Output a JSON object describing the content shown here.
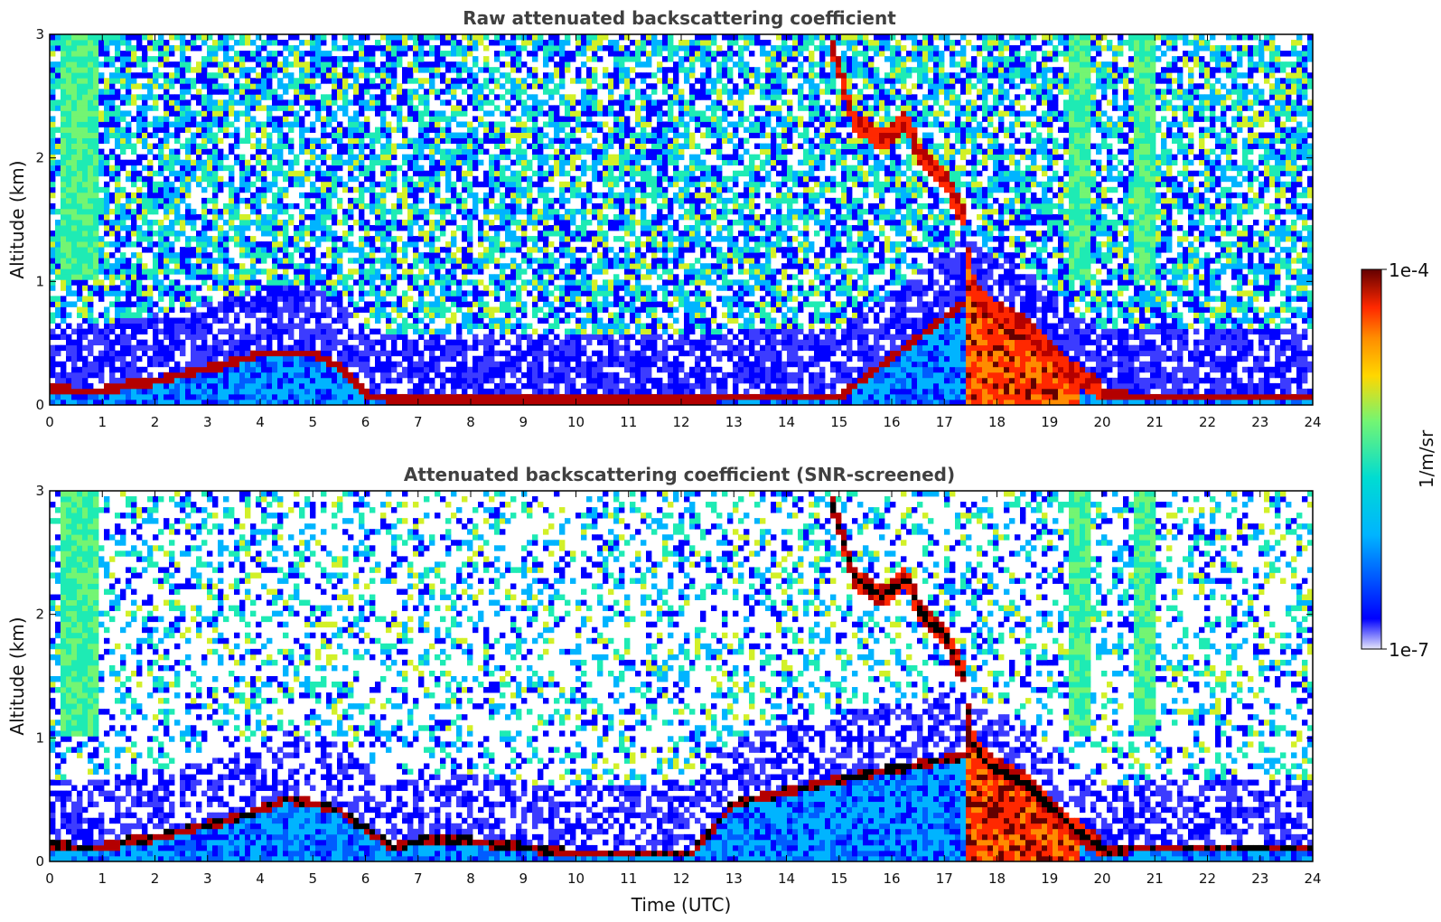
{
  "colors": {
    "scale": [
      "#ffffff",
      "#e6e6fa",
      "#b3b3f0",
      "#3c3cff",
      "#0000ff",
      "#005cff",
      "#00b4ff",
      "#00dcd2",
      "#1eebb4",
      "#73f573",
      "#d2f028",
      "#ffd700",
      "#ff8c00",
      "#ff2800",
      "#b40000",
      "#640000"
    ],
    "black": "#000000"
  },
  "chart_data": [
    {
      "type": "heatmap",
      "title": "Raw attenuated backscattering coefficient",
      "xlabel": "",
      "ylabel": "Altitude (km)",
      "xlim": [
        0,
        24
      ],
      "ylim": [
        0,
        3
      ],
      "x_ticks": [
        "0",
        "1",
        "2",
        "3",
        "4",
        "5",
        "6",
        "7",
        "8",
        "9",
        "10",
        "11",
        "12",
        "13",
        "14",
        "15",
        "16",
        "17",
        "18",
        "19",
        "20",
        "21",
        "22",
        "23",
        "24"
      ],
      "y_ticks": [
        "0",
        "1",
        "2",
        "3"
      ],
      "boundary_layer_top_km": [
        [
          0,
          0.17
        ],
        [
          0.5,
          0.15
        ],
        [
          1.0,
          0.15
        ],
        [
          1.5,
          0.2
        ],
        [
          2.0,
          0.23
        ],
        [
          2.5,
          0.28
        ],
        [
          3.0,
          0.33
        ],
        [
          3.5,
          0.38
        ],
        [
          4.0,
          0.45
        ],
        [
          4.5,
          0.45
        ],
        [
          5.0,
          0.45
        ],
        [
          5.5,
          0.35
        ],
        [
          6.0,
          0.12
        ],
        [
          6.5,
          0.08
        ],
        [
          7,
          0.08
        ],
        [
          8,
          0.08
        ],
        [
          9,
          0.08
        ],
        [
          10,
          0.08
        ],
        [
          11,
          0.08
        ],
        [
          12.2,
          0.08
        ],
        [
          13,
          0.1
        ],
        [
          14,
          0.1
        ],
        [
          15,
          0.1
        ],
        [
          17.5,
          0.9
        ],
        [
          18,
          0.7
        ],
        [
          18.5,
          0.62
        ],
        [
          19,
          0.45
        ],
        [
          19.5,
          0.25
        ],
        [
          20,
          0.12
        ],
        [
          21,
          0.1
        ],
        [
          22,
          0.1
        ],
        [
          23,
          0.1
        ],
        [
          24,
          0.1
        ]
      ],
      "cloud_layer_km": [
        [
          14.8,
          3.0
        ],
        [
          15.0,
          2.7
        ],
        [
          15.3,
          2.3
        ],
        [
          15.6,
          2.2
        ],
        [
          15.8,
          2.15
        ],
        [
          16.0,
          2.2
        ],
        [
          16.3,
          2.3
        ],
        [
          16.5,
          2.05
        ],
        [
          16.8,
          1.9
        ],
        [
          17.0,
          1.85
        ],
        [
          17.2,
          1.65
        ],
        [
          17.4,
          1.5
        ],
        [
          17.5,
          1.0
        ],
        [
          17.8,
          0.8
        ],
        [
          18.2,
          0.7
        ],
        [
          18.5,
          0.65
        ],
        [
          19.0,
          0.45
        ],
        [
          19.5,
          0.25
        ],
        [
          20.0,
          0.12
        ]
      ],
      "noise_level": 0.72,
      "screened": false
    },
    {
      "type": "heatmap",
      "title": "Attenuated backscattering coefficient (SNR-screened)",
      "xlabel": "Time (UTC)",
      "ylabel": "Altitude (km)",
      "xlim": [
        0,
        24
      ],
      "ylim": [
        0,
        3
      ],
      "x_ticks": [
        "0",
        "1",
        "2",
        "3",
        "4",
        "5",
        "6",
        "7",
        "8",
        "9",
        "10",
        "11",
        "12",
        "13",
        "14",
        "15",
        "16",
        "17",
        "18",
        "19",
        "20",
        "21",
        "22",
        "23",
        "24"
      ],
      "y_ticks": [
        "0",
        "1",
        "2",
        "3"
      ],
      "boundary_layer_top_km": [
        [
          0,
          0.17
        ],
        [
          0.5,
          0.15
        ],
        [
          1.0,
          0.15
        ],
        [
          1.5,
          0.2
        ],
        [
          2.0,
          0.23
        ],
        [
          2.5,
          0.28
        ],
        [
          3.0,
          0.33
        ],
        [
          3.5,
          0.38
        ],
        [
          4.0,
          0.45
        ],
        [
          4.5,
          0.55
        ],
        [
          5.0,
          0.5
        ],
        [
          5.5,
          0.45
        ],
        [
          6.0,
          0.3
        ],
        [
          6.5,
          0.15
        ],
        [
          7,
          0.2
        ],
        [
          8,
          0.2
        ],
        [
          9,
          0.15
        ],
        [
          10,
          0.1
        ],
        [
          11,
          0.1
        ],
        [
          12.2,
          0.1
        ],
        [
          13,
          0.5
        ],
        [
          14,
          0.6
        ],
        [
          15,
          0.7
        ],
        [
          17.5,
          0.9
        ],
        [
          18,
          0.7
        ],
        [
          18.5,
          0.62
        ],
        [
          19,
          0.45
        ],
        [
          19.5,
          0.25
        ],
        [
          20,
          0.12
        ],
        [
          21,
          0.15
        ],
        [
          22,
          0.15
        ],
        [
          23,
          0.15
        ],
        [
          24,
          0.15
        ]
      ],
      "cloud_layer_km": [
        [
          14.8,
          3.0
        ],
        [
          15.0,
          2.7
        ],
        [
          15.3,
          2.3
        ],
        [
          15.6,
          2.2
        ],
        [
          15.8,
          2.15
        ],
        [
          16.0,
          2.2
        ],
        [
          16.3,
          2.3
        ],
        [
          16.5,
          2.05
        ],
        [
          16.8,
          1.9
        ],
        [
          17.0,
          1.85
        ],
        [
          17.2,
          1.65
        ],
        [
          17.4,
          1.5
        ],
        [
          17.5,
          1.0
        ],
        [
          17.8,
          0.8
        ],
        [
          18.2,
          0.7
        ],
        [
          18.5,
          0.65
        ],
        [
          19.0,
          0.45
        ],
        [
          19.5,
          0.25
        ],
        [
          20.0,
          0.12
        ]
      ],
      "noise_level": 0.35,
      "screened": true
    }
  ],
  "colorbar": {
    "label": "1/m/sr",
    "max_label": "1e-4",
    "min_label": "1e-7",
    "scale": "log"
  }
}
